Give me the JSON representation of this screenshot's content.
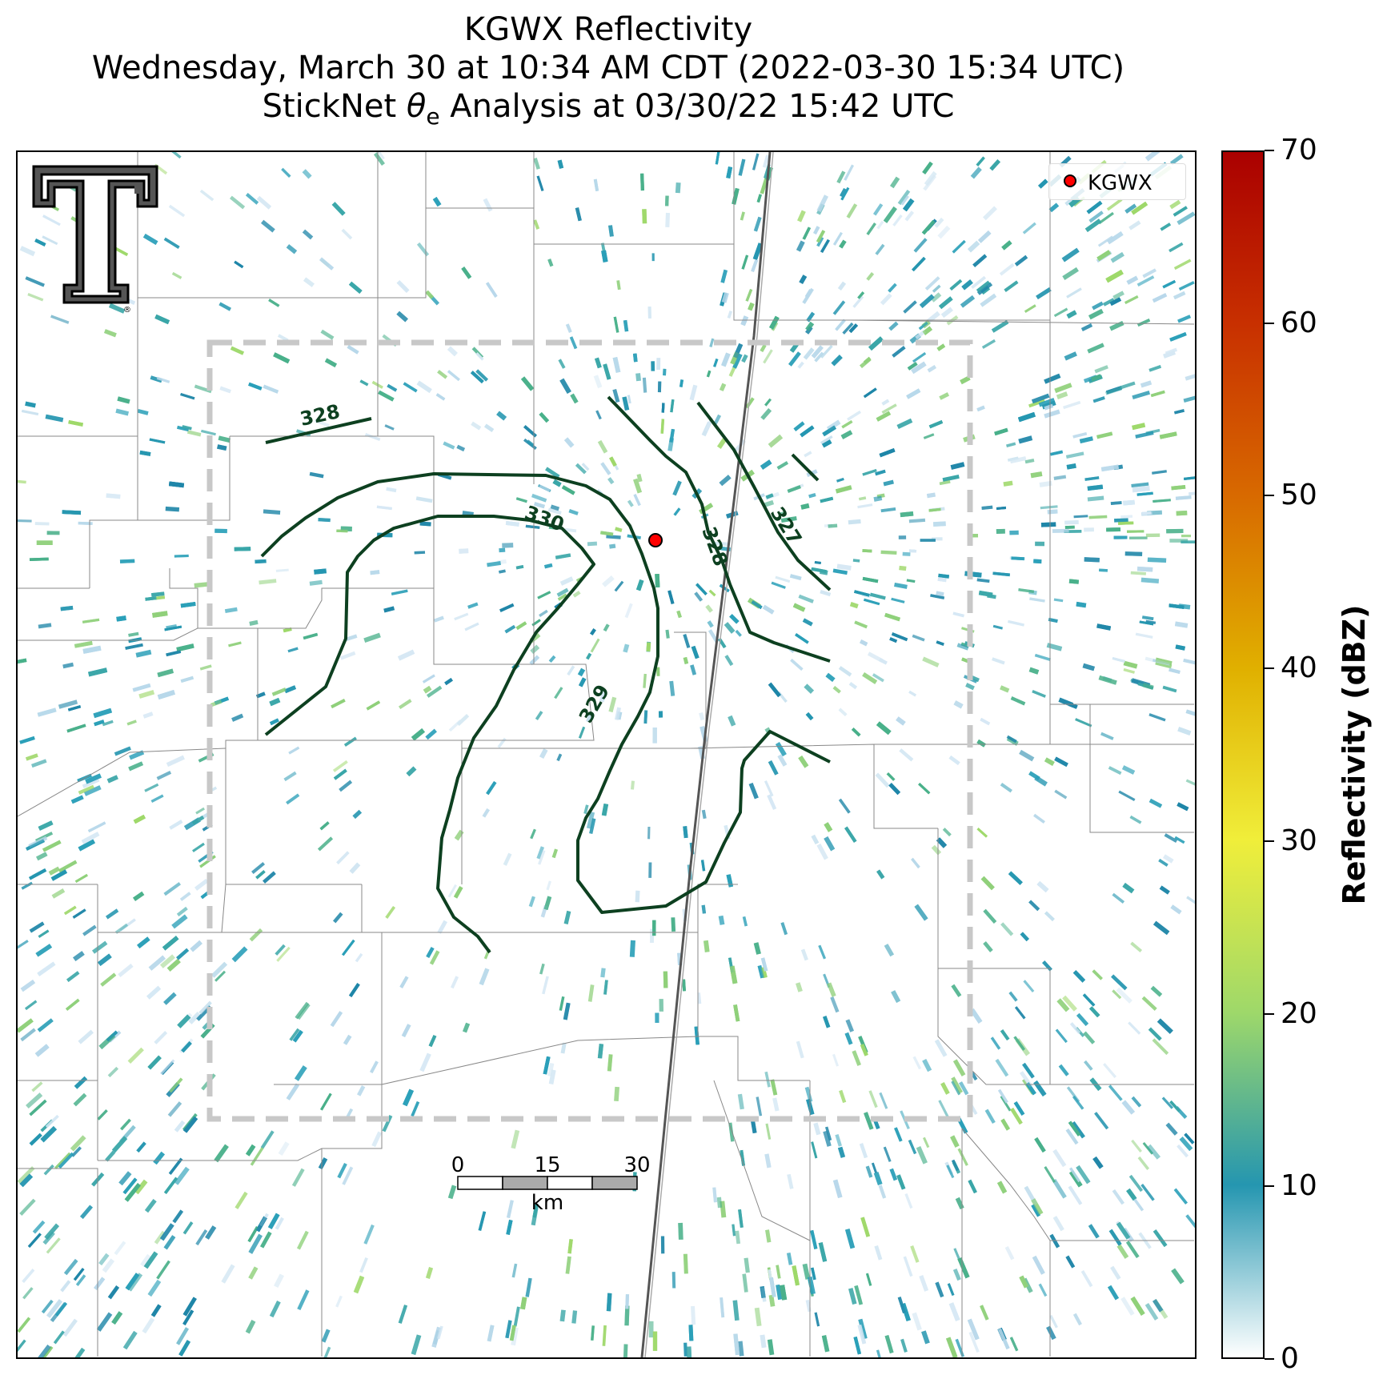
{
  "title": {
    "line1": "KGWX Reflectivity",
    "line2": "Wednesday, March 30 at 10:34 AM CDT (2022-03-30 15:34 UTC)",
    "line3_prefix": "StickNet ",
    "line3_symbol": "θ",
    "line3_subscript": "e",
    "line3_suffix": " Analysis at 03/30/22 15:42 UTC"
  },
  "legend": {
    "label": "KGWX",
    "marker_color": "#ff0000"
  },
  "colorbar": {
    "title": "Reflectivity (dBZ)",
    "ticks": [
      "0",
      "10",
      "20",
      "30",
      "40",
      "50",
      "60",
      "70"
    ],
    "range": [
      0,
      70
    ],
    "colors": [
      "#ffffff",
      "#2596b0",
      "#9ed86a",
      "#f0ee3a",
      "#e0b000",
      "#d86a00",
      "#c83000",
      "#aa0000"
    ]
  },
  "contours": {
    "color": "#0d4020",
    "levels": [
      "327",
      "328",
      "328",
      "329",
      "330"
    ]
  },
  "scale_bar": {
    "labels": [
      "0",
      "15",
      "30"
    ],
    "unit": "km"
  },
  "logo": {
    "name": "Texas Tech Double T",
    "registered_mark": "®"
  },
  "radar_site": {
    "name": "KGWX",
    "color": "#ff0000"
  }
}
